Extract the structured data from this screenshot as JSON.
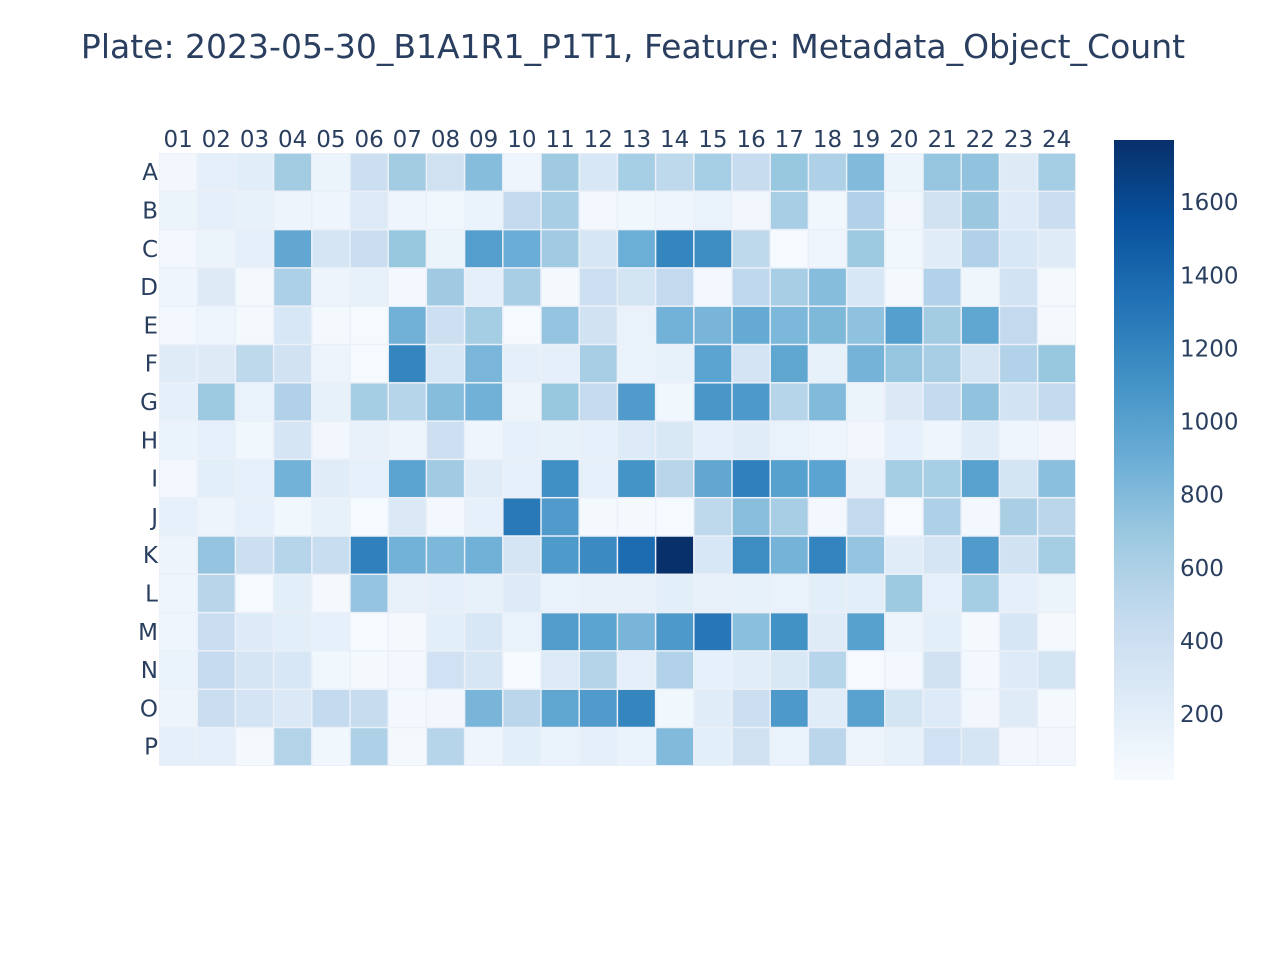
{
  "chart_data": {
    "type": "heatmap",
    "title": "Plate: 2023-05-30_B1A1R1_P1T1, Feature: Metadata_Object_Count",
    "xlabel": "",
    "ylabel": "",
    "x_categories": [
      "01",
      "02",
      "03",
      "04",
      "05",
      "06",
      "07",
      "08",
      "09",
      "10",
      "11",
      "12",
      "13",
      "14",
      "15",
      "16",
      "17",
      "18",
      "19",
      "20",
      "21",
      "22",
      "23",
      "24"
    ],
    "y_categories": [
      "A",
      "B",
      "C",
      "D",
      "E",
      "F",
      "G",
      "H",
      "I",
      "J",
      "K",
      "L",
      "M",
      "N",
      "O",
      "P"
    ],
    "colorscale": "Blues",
    "color_min_hex": "#f7fbff",
    "color_max_hex": "#08306b",
    "zmin": 20,
    "zmax": 1770,
    "colorbar_ticks": [
      200,
      400,
      600,
      800,
      1000,
      1200,
      1400,
      1600
    ],
    "gap_color": "#ebf0f8",
    "z": [
      [
        70,
        190,
        210,
        650,
        120,
        400,
        650,
        370,
        780,
        100,
        670,
        300,
        630,
        500,
        630,
        440,
        700,
        590,
        800,
        120,
        710,
        730,
        240,
        640
      ],
      [
        120,
        190,
        160,
        110,
        100,
        260,
        100,
        80,
        130,
        480,
        620,
        60,
        80,
        100,
        140,
        70,
        620,
        80,
        580,
        70,
        370,
        690,
        250,
        410
      ],
      [
        60,
        120,
        180,
        950,
        320,
        420,
        700,
        120,
        1020,
        900,
        660,
        310,
        890,
        1200,
        1150,
        500,
        40,
        100,
        680,
        80,
        220,
        580,
        300,
        230
      ],
      [
        100,
        240,
        50,
        600,
        110,
        160,
        60,
        670,
        180,
        620,
        50,
        390,
        340,
        480,
        60,
        490,
        620,
        780,
        300,
        50,
        570,
        90,
        350,
        50
      ],
      [
        60,
        100,
        50,
        300,
        50,
        40,
        870,
        390,
        640,
        40,
        720,
        360,
        140,
        860,
        840,
        930,
        820,
        810,
        740,
        1010,
        650,
        960,
        480,
        50
      ],
      [
        230,
        240,
        500,
        360,
        110,
        40,
        1200,
        290,
        830,
        180,
        190,
        620,
        130,
        160,
        980,
        330,
        960,
        160,
        850,
        710,
        620,
        320,
        570,
        700
      ],
      [
        180,
        680,
        140,
        580,
        160,
        640,
        540,
        780,
        870,
        110,
        700,
        460,
        1040,
        80,
        1080,
        1060,
        540,
        800,
        120,
        270,
        470,
        730,
        350,
        470
      ],
      [
        130,
        170,
        80,
        320,
        70,
        150,
        110,
        390,
        100,
        170,
        160,
        170,
        250,
        280,
        190,
        220,
        140,
        100,
        70,
        170,
        100,
        220,
        100,
        70
      ],
      [
        60,
        200,
        170,
        860,
        220,
        170,
        980,
        660,
        220,
        170,
        1130,
        170,
        1100,
        530,
        950,
        1230,
        1000,
        980,
        150,
        640,
        630,
        990,
        340,
        760
      ],
      [
        170,
        110,
        170,
        80,
        160,
        40,
        270,
        60,
        170,
        1280,
        1040,
        50,
        50,
        40,
        500,
        770,
        620,
        60,
        480,
        40,
        590,
        60,
        610,
        520
      ],
      [
        110,
        720,
        400,
        540,
        430,
        1230,
        860,
        820,
        870,
        320,
        1050,
        1160,
        1370,
        1770,
        300,
        1150,
        850,
        1210,
        720,
        220,
        320,
        1040,
        360,
        640
      ],
      [
        100,
        530,
        40,
        200,
        50,
        720,
        150,
        190,
        160,
        250,
        140,
        150,
        150,
        200,
        150,
        160,
        140,
        200,
        200,
        680,
        170,
        640,
        190,
        120
      ],
      [
        100,
        410,
        250,
        200,
        170,
        40,
        50,
        200,
        300,
        140,
        1030,
        980,
        840,
        1060,
        1290,
        760,
        1110,
        230,
        1000,
        110,
        200,
        50,
        310,
        50
      ],
      [
        130,
        460,
        320,
        290,
        80,
        50,
        60,
        380,
        310,
        40,
        260,
        560,
        180,
        570,
        170,
        210,
        280,
        540,
        30,
        60,
        360,
        60,
        250,
        340
      ],
      [
        110,
        420,
        330,
        270,
        470,
        440,
        60,
        70,
        840,
        520,
        960,
        1040,
        1200,
        80,
        220,
        400,
        1060,
        220,
        990,
        340,
        250,
        70,
        230,
        50
      ],
      [
        190,
        190,
        50,
        560,
        80,
        590,
        50,
        540,
        100,
        200,
        130,
        180,
        130,
        800,
        200,
        370,
        140,
        520,
        110,
        160,
        380,
        320,
        70,
        70
      ]
    ]
  }
}
